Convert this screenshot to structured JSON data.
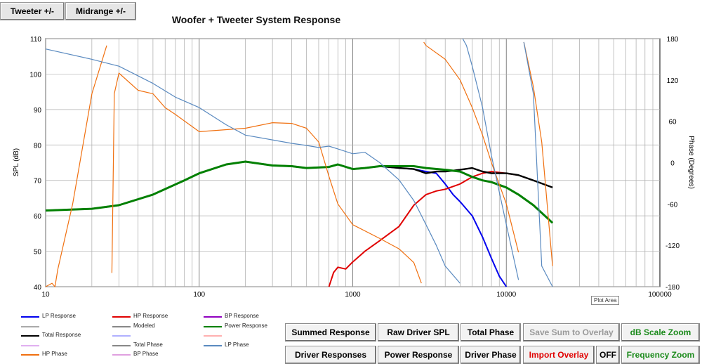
{
  "tabs": {
    "tweeter": "Tweeter +/-",
    "midrange": "Midrange  +/-"
  },
  "chart_data": {
    "type": "line",
    "title": "Woofer + Tweeter    System Response",
    "xlabel": "",
    "ylabel": "SPL (dB)",
    "y2label": "Phase (Degrees)",
    "xscale": "log",
    "xlim": [
      10,
      100000
    ],
    "ylim": [
      40,
      110
    ],
    "y2lim": [
      -180,
      180
    ],
    "xticks": [
      "10",
      "100",
      "1000",
      "10000",
      "100000"
    ],
    "yticks": [
      "40",
      "50",
      "60",
      "70",
      "80",
      "90",
      "100",
      "110"
    ],
    "y2ticks": [
      "-180",
      "-120",
      "-60",
      "0",
      "60",
      "120",
      "180"
    ],
    "grid": true,
    "series": [
      {
        "name": "LP Response",
        "color": "#0000ee",
        "axis": "y",
        "x": [
          10,
          20,
          30,
          50,
          80,
          100,
          150,
          200,
          300,
          400,
          500,
          700,
          800,
          1000,
          1200,
          1500,
          2000,
          2500,
          3000,
          3500,
          4000,
          4500,
          5000,
          6000,
          7000,
          8000,
          9000,
          10000
        ],
        "y": [
          61.5,
          62,
          63,
          66,
          70,
          72,
          74.5,
          75.3,
          74.2,
          74,
          73.5,
          73.8,
          74.5,
          73.2,
          73.5,
          74,
          73.5,
          73.2,
          72.5,
          72,
          69,
          66,
          64,
          60,
          54,
          48,
          43,
          40
        ]
      },
      {
        "name": "HP Response",
        "color": "#e00000",
        "axis": "y",
        "x": [
          700,
          750,
          800,
          900,
          1000,
          1200,
          1500,
          2000,
          2500,
          3000,
          3500,
          4000,
          5000,
          6000,
          7000,
          8000,
          10000,
          12000
        ],
        "y": [
          40,
          44,
          45.5,
          45,
          47,
          50,
          53,
          57,
          63,
          66,
          67,
          67.5,
          69,
          71,
          72,
          72.5,
          72,
          71.5
        ]
      },
      {
        "name": "Total Response",
        "color": "#000000",
        "axis": "y",
        "x": [
          10,
          20,
          30,
          50,
          80,
          100,
          150,
          200,
          300,
          400,
          500,
          700,
          800,
          1000,
          1200,
          1500,
          2000,
          2500,
          3000,
          3500,
          4000,
          5000,
          6000,
          7000,
          8000,
          10000,
          12000,
          15000,
          20000
        ],
        "y": [
          61.5,
          62,
          63,
          66,
          70,
          72,
          74.5,
          75.3,
          74.2,
          74,
          73.5,
          73.8,
          74.5,
          73.2,
          73.5,
          74,
          73.5,
          73.2,
          72,
          72.5,
          72.5,
          73,
          73.5,
          72.5,
          72,
          72,
          71.5,
          70,
          68
        ]
      },
      {
        "name": "Power Response",
        "color": "#008000",
        "axis": "y",
        "x": [
          10,
          20,
          30,
          50,
          80,
          100,
          150,
          200,
          300,
          400,
          500,
          700,
          800,
          1000,
          1200,
          1500,
          2000,
          2500,
          3000,
          4000,
          5000,
          6000,
          7000,
          8000,
          10000,
          12000,
          15000,
          20000
        ],
        "y": [
          61.5,
          62,
          63,
          66,
          70,
          72,
          74.5,
          75.3,
          74.2,
          74,
          73.5,
          73.8,
          74.5,
          73.2,
          73.5,
          74,
          74,
          74,
          73.5,
          73,
          72.5,
          71,
          70,
          69.5,
          68,
          66,
          63,
          58
        ]
      },
      {
        "name": "HP Phase",
        "color": "#f07010",
        "axis": "y2",
        "x": [
          10,
          11,
          11.5,
          12,
          15,
          20,
          25,
          27,
          28,
          30,
          40,
          50,
          60,
          70,
          100,
          200,
          300,
          400,
          500,
          600,
          700,
          800,
          1000,
          1500,
          2000,
          2500,
          2800,
          2900,
          3000,
          4000,
          5000,
          6000,
          7000,
          8000,
          10000,
          12000,
          13000,
          15000,
          17000,
          20000
        ],
        "y": [
          -180,
          -175,
          -180,
          -155,
          -60,
          100,
          170,
          -160,
          100,
          130,
          105,
          100,
          80,
          70,
          45,
          50,
          58,
          57,
          50,
          30,
          -20,
          -60,
          -90,
          -110,
          -125,
          -145,
          -175,
          175,
          170,
          150,
          120,
          80,
          40,
          0,
          -60,
          -130,
          175,
          110,
          30,
          -150
        ]
      },
      {
        "name": "LP Phase",
        "color": "#5a8ac0",
        "axis": "y2",
        "x": [
          10,
          20,
          30,
          50,
          70,
          100,
          150,
          200,
          300,
          400,
          500,
          600,
          700,
          800,
          1000,
          1200,
          1500,
          2000,
          2500,
          3000,
          3500,
          4000,
          5000,
          5200,
          5500,
          6000,
          7000,
          8000,
          10000,
          12000,
          13000,
          15000,
          17000,
          20000
        ],
        "y": [
          165,
          150,
          140,
          115,
          95,
          80,
          55,
          40,
          33,
          28,
          25,
          22,
          24,
          20,
          13,
          15,
          0,
          -25,
          -55,
          -90,
          -120,
          -150,
          -175,
          180,
          170,
          140,
          80,
          10,
          -90,
          -170,
          175,
          100,
          -150,
          -180
        ]
      }
    ],
    "legend": [
      {
        "label": "LP Response",
        "color": "#0000ee"
      },
      {
        "label": "HP Response",
        "color": "#e00000"
      },
      {
        "label": "BP Response",
        "color": "#9000c0"
      },
      {
        "label": "",
        "color": "#aaaaaa"
      },
      {
        "label": "Modeled",
        "color": "#888888"
      },
      {
        "label": "Power Response",
        "color": "#008000"
      },
      {
        "label": "Total Response",
        "color": "#000000"
      },
      {
        "label": "",
        "color": "#b0b0ff"
      },
      {
        "label": "",
        "color": "#ffb0b0"
      },
      {
        "label": "",
        "color": "#e0b0f0"
      },
      {
        "label": "Total Phase",
        "color": "#888888"
      },
      {
        "label": "LP Phase",
        "color": "#5a8ac0"
      },
      {
        "label": "HP Phase",
        "color": "#f07010"
      },
      {
        "label": "BP Phase",
        "color": "#e0a0e0"
      }
    ],
    "annotation": "Plot Area"
  },
  "buttons": {
    "summed_response": "Summed Response",
    "raw_driver_spl": "Raw Driver SPL",
    "total_phase": "Total Phase",
    "save_sum_overlay": "Save Sum to Overlay",
    "db_scale_zoom": "dB Scale Zoom",
    "driver_responses": "Driver Responses",
    "power_response": "Power Response",
    "driver_phase": "Driver Phase",
    "import_overlay": "Import Overlay",
    "off": "OFF",
    "frequency_zoom": "Frequency Zoom"
  },
  "colors": {
    "db_zoom": "#1a8a1a",
    "import_overlay": "#e00000",
    "save_sum_disabled": "#9a9a9a"
  }
}
